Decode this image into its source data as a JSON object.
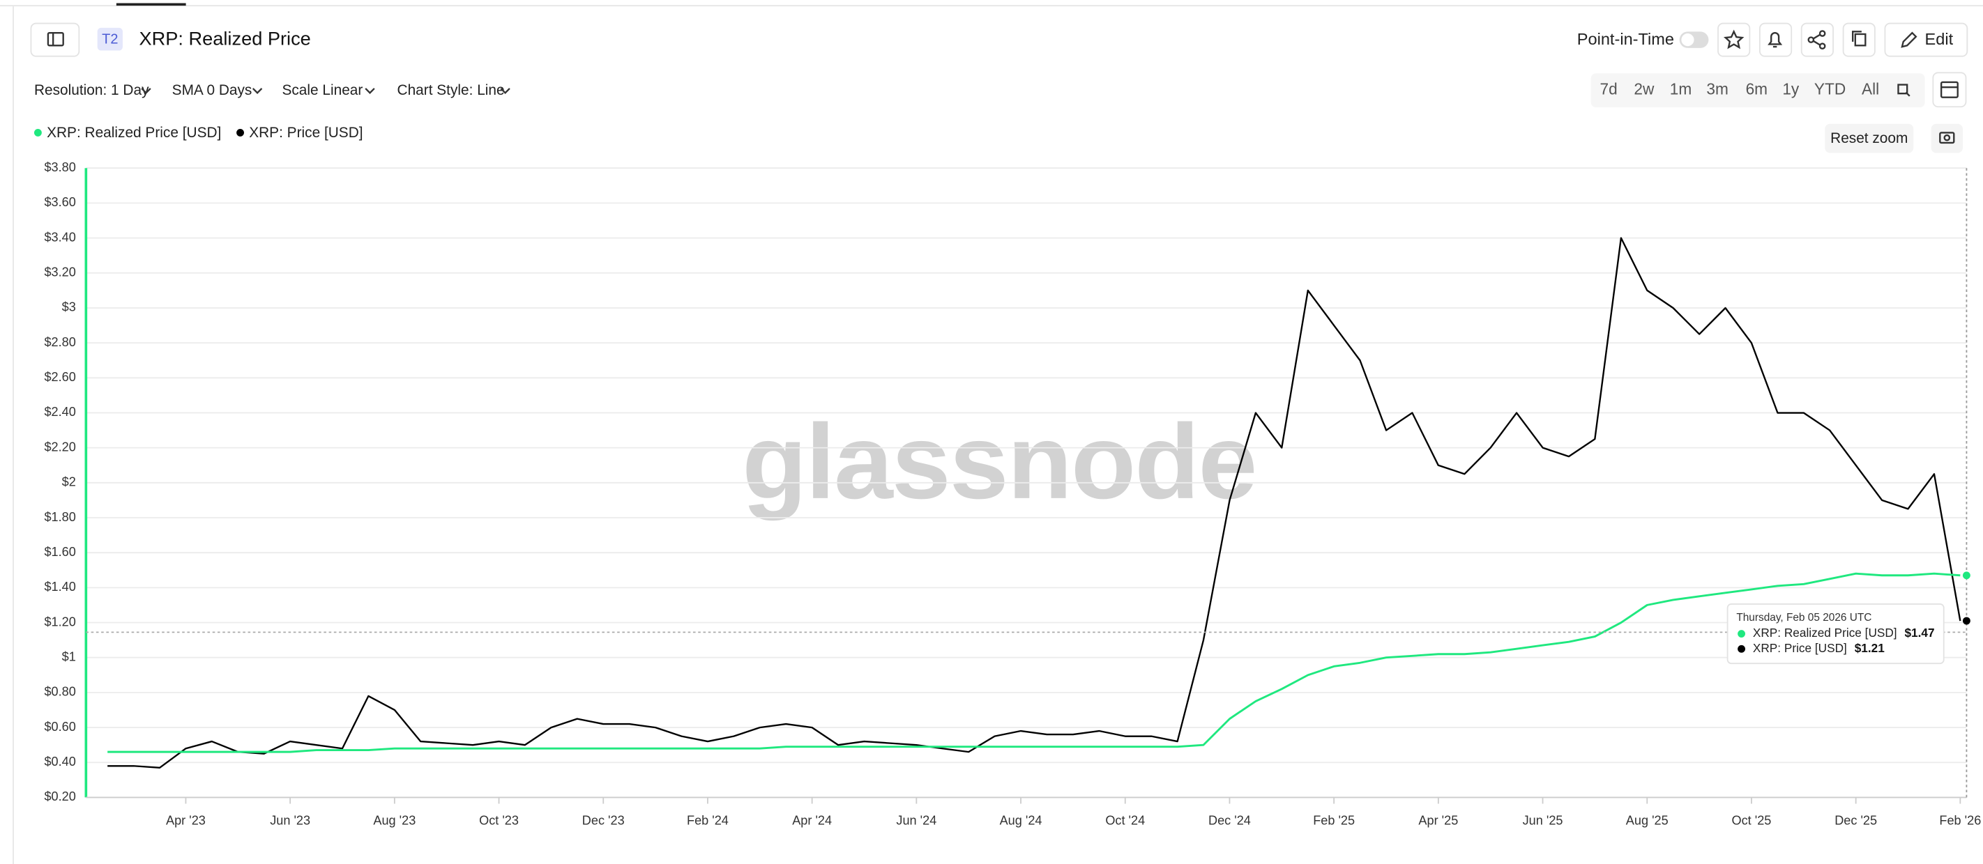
{
  "header": {
    "badge": "T2",
    "title": "XRP: Realized Price",
    "point_in_time": "Point-in-Time",
    "edit": "Edit"
  },
  "controls": {
    "resolution": "Resolution: 1 Day",
    "sma": "SMA 0 Days",
    "scale": "Scale Linear",
    "style": "Chart Style: Line",
    "ranges": [
      "7d",
      "2w",
      "1m",
      "3m",
      "6m",
      "1y",
      "YTD",
      "All"
    ],
    "reset_zoom": "Reset zoom"
  },
  "chart_data": {
    "type": "line",
    "watermark": "glassnode",
    "categories": [
      null,
      null,
      null,
      "Apr '23",
      null,
      null,
      null,
      "Jun '23",
      null,
      null,
      null,
      "Aug '23",
      null,
      null,
      null,
      "Oct '23",
      null,
      null,
      null,
      "Dec '23",
      null,
      null,
      null,
      "Feb '24",
      null,
      null,
      null,
      "Apr '24",
      null,
      null,
      null,
      "Jun '24",
      null,
      null,
      null,
      "Aug '24",
      null,
      null,
      null,
      "Oct '24",
      null,
      null,
      null,
      "Dec '24",
      null,
      null,
      null,
      "Feb '25",
      null,
      null,
      null,
      "Apr '25",
      null,
      null,
      null,
      "Jun '25",
      null,
      null,
      null,
      "Aug '25",
      null,
      null,
      null,
      "Oct '25",
      null,
      null,
      null,
      "Dec '25",
      null,
      null,
      null,
      "Feb '26"
    ],
    "series": [
      {
        "name": "XRP: Realized Price [USD]",
        "color": "#1fe87f",
        "values": [
          0.46,
          0.46,
          0.46,
          0.46,
          0.46,
          0.46,
          0.46,
          0.46,
          0.47,
          0.47,
          0.47,
          0.48,
          0.48,
          0.48,
          0.48,
          0.48,
          0.48,
          0.48,
          0.48,
          0.48,
          0.48,
          0.48,
          0.48,
          0.48,
          0.48,
          0.48,
          0.49,
          0.49,
          0.49,
          0.49,
          0.49,
          0.49,
          0.49,
          0.49,
          0.49,
          0.49,
          0.49,
          0.49,
          0.49,
          0.49,
          0.49,
          0.49,
          0.5,
          0.65,
          0.75,
          0.82,
          0.9,
          0.95,
          0.97,
          1.0,
          1.01,
          1.02,
          1.02,
          1.03,
          1.05,
          1.07,
          1.09,
          1.12,
          1.2,
          1.3,
          1.33,
          1.35,
          1.37,
          1.39,
          1.41,
          1.42,
          1.45,
          1.48,
          1.47,
          1.47,
          1.48,
          1.47
        ]
      },
      {
        "name": "XRP: Price [USD]",
        "color": "#000000",
        "values": [
          0.38,
          0.38,
          0.37,
          0.48,
          0.52,
          0.46,
          0.45,
          0.52,
          0.5,
          0.48,
          0.78,
          0.7,
          0.52,
          0.51,
          0.5,
          0.52,
          0.5,
          0.6,
          0.65,
          0.62,
          0.62,
          0.6,
          0.55,
          0.52,
          0.55,
          0.6,
          0.62,
          0.6,
          0.5,
          0.52,
          0.51,
          0.5,
          0.48,
          0.46,
          0.55,
          0.58,
          0.56,
          0.56,
          0.58,
          0.55,
          0.55,
          0.52,
          1.1,
          1.9,
          2.4,
          2.2,
          3.1,
          2.9,
          2.7,
          2.3,
          2.4,
          2.1,
          2.05,
          2.2,
          2.4,
          2.2,
          2.15,
          2.25,
          3.4,
          3.1,
          3.0,
          2.85,
          3.0,
          2.8,
          2.4,
          2.4,
          2.3,
          2.1,
          1.9,
          1.85,
          2.05,
          1.21
        ]
      }
    ],
    "ylim": [
      0.2,
      3.8
    ],
    "yticks": [
      {
        "value": 0.2,
        "label": "$0.20"
      },
      {
        "value": 0.4,
        "label": "$0.40"
      },
      {
        "value": 0.6,
        "label": "$0.60"
      },
      {
        "value": 0.8,
        "label": "$0.80"
      },
      {
        "value": 1,
        "label": "$1"
      },
      {
        "value": 1.2,
        "label": "$1.20"
      },
      {
        "value": 1.4,
        "label": "$1.40"
      },
      {
        "value": 1.6,
        "label": "$1.60"
      },
      {
        "value": 1.8,
        "label": "$1.80"
      },
      {
        "value": 2,
        "label": "$2"
      },
      {
        "value": 2.2,
        "label": "$2.20"
      },
      {
        "value": 2.4,
        "label": "$2.40"
      },
      {
        "value": 2.6,
        "label": "$2.60"
      },
      {
        "value": 2.8,
        "label": "$2.80"
      },
      {
        "value": 3,
        "label": "$3"
      },
      {
        "value": 3.2,
        "label": "$3.20"
      },
      {
        "value": 3.4,
        "label": "$3.40"
      },
      {
        "value": 3.6,
        "label": "$3.60"
      },
      {
        "value": 3.8,
        "label": "$3.80"
      }
    ],
    "grid": true,
    "tooltip": {
      "title": "Thursday, Feb 05 2026 UTC",
      "values": [
        "$1.47",
        "$1.21"
      ]
    }
  }
}
